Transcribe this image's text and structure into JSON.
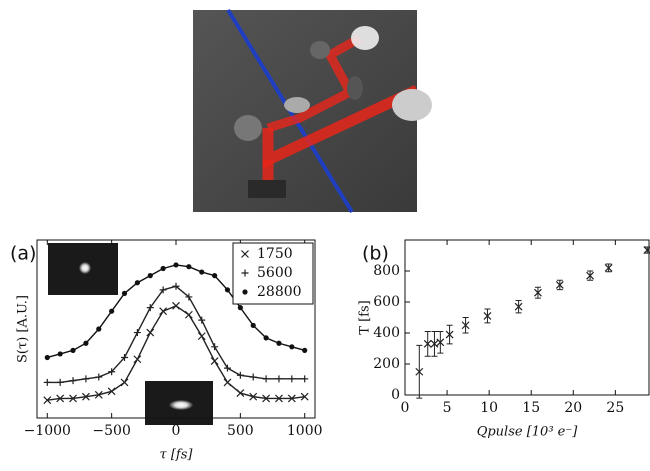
{
  "chart_data": [
    {
      "type": "line",
      "panel": "(a)",
      "xlabel": "τ [fs]",
      "ylabel": "S(τ) [A.U.]",
      "xlim": [
        -1080,
        1080
      ],
      "ylim": [
        0,
        1
      ],
      "xticks": [
        {
          "value": -1000,
          "label": "−1000"
        },
        {
          "value": -500,
          "label": "−500"
        },
        0,
        500,
        1000
      ],
      "legend": "upper right",
      "x": [
        -1000,
        -900,
        -800,
        -700,
        -600,
        -500,
        -400,
        -300,
        -200,
        -100,
        0,
        100,
        200,
        300,
        400,
        500,
        600,
        700,
        800,
        900,
        1000
      ],
      "series": [
        {
          "name": "1750",
          "marker": "x",
          "color": "#222222",
          "values": [
            0.1,
            0.11,
            0.11,
            0.12,
            0.13,
            0.15,
            0.2,
            0.33,
            0.48,
            0.6,
            0.63,
            0.58,
            0.46,
            0.32,
            0.2,
            0.14,
            0.12,
            0.11,
            0.11,
            0.11,
            0.12
          ]
        },
        {
          "name": "5600",
          "marker": "+",
          "color": "#222222",
          "values": [
            0.2,
            0.2,
            0.21,
            0.22,
            0.23,
            0.26,
            0.34,
            0.48,
            0.62,
            0.72,
            0.74,
            0.68,
            0.55,
            0.4,
            0.28,
            0.24,
            0.23,
            0.22,
            0.22,
            0.22,
            0.22
          ]
        },
        {
          "name": "28800",
          "marker": "o",
          "color": "#111111",
          "values": [
            0.34,
            0.36,
            0.38,
            0.42,
            0.5,
            0.6,
            0.7,
            0.76,
            0.8,
            0.84,
            0.86,
            0.85,
            0.82,
            0.8,
            0.72,
            0.62,
            0.52,
            0.45,
            0.42,
            0.4,
            0.38
          ]
        }
      ]
    },
    {
      "type": "errorbar",
      "panel": "(b)",
      "xlabel": "Qpulse [10³ e⁻]",
      "ylabel": "T [fs]",
      "xlim": [
        0,
        29
      ],
      "ylim": [
        0,
        1000
      ],
      "xticks": [
        0,
        5,
        10,
        15,
        20,
        25
      ],
      "yticks": [
        0,
        200,
        400,
        600,
        800
      ],
      "color": "#222222",
      "x": [
        1.7,
        2.7,
        3.5,
        4.2,
        5.3,
        7.2,
        9.8,
        13.5,
        15.8,
        18.4,
        22,
        24.2,
        28.8
      ],
      "values": [
        150,
        330,
        330,
        340,
        390,
        450,
        510,
        570,
        660,
        710,
        770,
        820,
        935
      ],
      "errors": [
        170,
        80,
        80,
        70,
        60,
        50,
        45,
        40,
        35,
        30,
        30,
        25,
        20
      ]
    }
  ]
}
